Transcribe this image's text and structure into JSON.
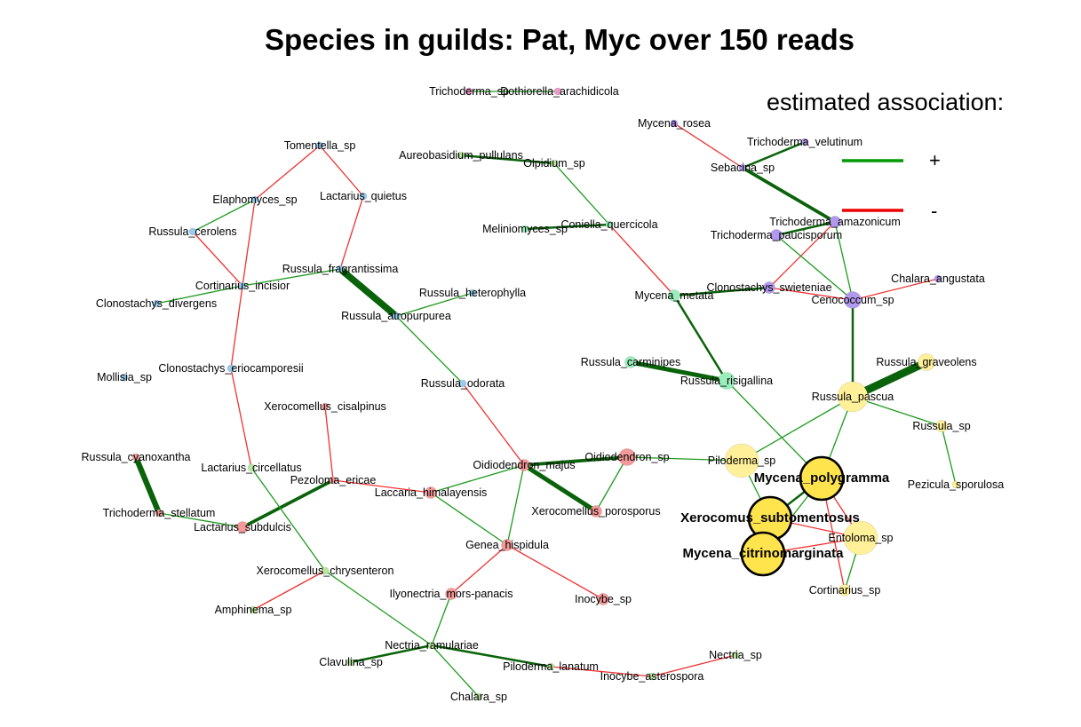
{
  "title": "Species in guilds: Pat, Myc over 150 reads",
  "legend": {
    "title": "estimated association:",
    "items": [
      {
        "symbol": "+",
        "color": "#009900"
      },
      {
        "symbol": "-",
        "color": "#ee0000"
      }
    ]
  },
  "colors": {
    "positive": "#1f9a1f",
    "positive_strong": "#0a630a",
    "negative": "#ee3333",
    "groups": {
      "blue": "#99ccee",
      "purple": "#b299ee",
      "teal": "#99eebb",
      "yellow": "#fff099",
      "highlight": "#ffe44d",
      "red": "#f59999",
      "green": "#b8e6a0",
      "pink": "#ee99cc"
    }
  },
  "nodes": [
    {
      "id": "Trichoderma_sp",
      "label": "Trichoderma_sp",
      "group": "pink",
      "size": 1
    },
    {
      "id": "Dothiorella_arachidicola",
      "label": "Dothiorella_arachidicola",
      "group": "pink",
      "size": 1
    },
    {
      "id": "Tomentella_sp",
      "label": "Tomentella_sp",
      "group": "blue",
      "size": 1
    },
    {
      "id": "Elaphomyces_sp",
      "label": "Elaphomyces_sp",
      "group": "blue",
      "size": 1
    },
    {
      "id": "Lactarius_quietus",
      "label": "Lactarius_quietus",
      "group": "blue",
      "size": 1
    },
    {
      "id": "Russula_cerolens",
      "label": "Russula_cerolens",
      "group": "blue",
      "size": 1
    },
    {
      "id": "Russula_fragrantissima",
      "label": "Russula_fragrantissima",
      "group": "blue",
      "size": 1
    },
    {
      "id": "Cortinarius_incisior",
      "label": "Cortinarius_incisior",
      "group": "blue",
      "size": 1
    },
    {
      "id": "Clonostachys_divergens",
      "label": "Clonostachys_divergens",
      "group": "blue",
      "size": 1
    },
    {
      "id": "Russula_heterophylla",
      "label": "Russula_heterophylla",
      "group": "blue",
      "size": 1
    },
    {
      "id": "Russula_atropurpurea",
      "label": "Russula_atropurpurea",
      "group": "blue",
      "size": 1
    },
    {
      "id": "Mollisia_sp",
      "label": "Mollisia_sp",
      "group": "blue",
      "size": 1
    },
    {
      "id": "Clonostachys_eriocamporesii",
      "label": "Clonostachys_eriocamporesii",
      "group": "blue",
      "size": 1
    },
    {
      "id": "Russula_odorata",
      "label": "Russula_odorata",
      "group": "blue",
      "size": 1
    },
    {
      "id": "Aureobasidium_pullulans",
      "label": "Aureobasidium_pullulans",
      "group": "green",
      "size": 1
    },
    {
      "id": "Olpidium_sp",
      "label": "Olpidium_sp",
      "group": "green",
      "size": 1
    },
    {
      "id": "Meliniomyces_sp",
      "label": "Meliniomyces_sp",
      "group": "teal",
      "size": 1
    },
    {
      "id": "Coniella_quercicola",
      "label": "Coniella_quercicola",
      "group": "teal",
      "size": 1
    },
    {
      "id": "Mycena_rosea",
      "label": "Mycena_rosea",
      "group": "purple",
      "size": 1
    },
    {
      "id": "Trichoderma_velutinum",
      "label": "Trichoderma_velutinum",
      "group": "purple",
      "size": 1
    },
    {
      "id": "Sebacina_sp",
      "label": "Sebacina_sp",
      "group": "purple",
      "size": 1
    },
    {
      "id": "Trichoderma_amazonicum",
      "label": "Trichoderma_amazonicum",
      "group": "purple",
      "size": 2
    },
    {
      "id": "Trichoderma_paucisporum",
      "label": "Trichoderma_paucisporum",
      "group": "purple",
      "size": 2
    },
    {
      "id": "Chalara_angustata",
      "label": "Chalara_angustata",
      "group": "purple",
      "size": 1
    },
    {
      "id": "Clonostachys_swieteniae",
      "label": "Clonostachys_swieteniae",
      "group": "purple",
      "size": 2
    },
    {
      "id": "Cenococcum_sp",
      "label": "Cenococcum_sp",
      "group": "purple",
      "size": 3
    },
    {
      "id": "Mycena_metata",
      "label": "Mycena_metata",
      "group": "teal",
      "size": 2
    },
    {
      "id": "Russula_carminipes",
      "label": "Russula_carminipes",
      "group": "teal",
      "size": 2
    },
    {
      "id": "Russula_risigallina",
      "label": "Russula_risigallina",
      "group": "teal",
      "size": 3
    },
    {
      "id": "Russula_graveolens",
      "label": "Russula_graveolens",
      "group": "yellow",
      "size": 3
    },
    {
      "id": "Russula_pascua",
      "label": "Russula_pascua",
      "group": "yellow",
      "size": 5
    },
    {
      "id": "Russula_sp",
      "label": "Russula_sp",
      "group": "yellow",
      "size": 2
    },
    {
      "id": "Pezicula_sporulosa",
      "label": "Pezicula_sporulosa",
      "group": "yellow",
      "size": 1
    },
    {
      "id": "Piloderma_sp",
      "label": "Piloderma_sp",
      "group": "yellow",
      "size": 6
    },
    {
      "id": "Mycena_polygramma",
      "label": "Mycena_polygramma",
      "group": "highlight",
      "size": 7,
      "bold": true
    },
    {
      "id": "Xerocomus_subtomentosus",
      "label": "Xerocomus_subtomentosus",
      "group": "highlight",
      "size": 7,
      "bold": true
    },
    {
      "id": "Mycena_citrinomarginata",
      "label": "Mycena_citrinomarginata",
      "group": "highlight",
      "size": 7,
      "bold": true
    },
    {
      "id": "Entoloma_sp",
      "label": "Entoloma_sp",
      "group": "yellow",
      "size": 6
    },
    {
      "id": "Cortinarius_sp",
      "label": "Cortinarius_sp",
      "group": "yellow",
      "size": 2
    },
    {
      "id": "Xerocomellus_cisalpinus",
      "label": "Xerocomellus_cisalpinus",
      "group": "red",
      "size": 1
    },
    {
      "id": "Oidiodendron_majus",
      "label": "Oidiodendron_majus",
      "group": "red",
      "size": 2
    },
    {
      "id": "Oidiodendron_sp",
      "label": "Oidiodendron_sp",
      "group": "red",
      "size": 3
    },
    {
      "id": "Xerocomellus_porosporus",
      "label": "Xerocomellus_porosporus",
      "group": "red",
      "size": 2
    },
    {
      "id": "Russula_cyanoxantha",
      "label": "Russula_cyanoxantha",
      "group": "red",
      "size": 1
    },
    {
      "id": "Lactarius_circellatus",
      "label": "Lactarius_circellatus",
      "group": "green",
      "size": 1
    },
    {
      "id": "Pezoloma_ericae",
      "label": "Pezoloma_ericae",
      "group": "red",
      "size": 1
    },
    {
      "id": "Laccaria_himalayensis",
      "label": "Laccaria_himalayensis",
      "group": "red",
      "size": 2
    },
    {
      "id": "Trichoderma_stellatum",
      "label": "Trichoderma_stellatum",
      "group": "red",
      "size": 1
    },
    {
      "id": "Lactarius_subdulcis",
      "label": "Lactarius_subdulcis",
      "group": "red",
      "size": 2
    },
    {
      "id": "Genea_hispidula",
      "label": "Genea_hispidula",
      "group": "red",
      "size": 2
    },
    {
      "id": "Xerocomellus_chrysenteron",
      "label": "Xerocomellus_chrysenteron",
      "group": "green",
      "size": 1
    },
    {
      "id": "Ilyonectria_mors-panacis",
      "label": "Ilyonectria_mors-panacis",
      "group": "red",
      "size": 2
    },
    {
      "id": "Inocybe_sp",
      "label": "Inocybe_sp",
      "group": "red",
      "size": 2
    },
    {
      "id": "Amphinema_sp",
      "label": "Amphinema_sp",
      "group": "green",
      "size": 1
    },
    {
      "id": "Nectria_ramulariae",
      "label": "Nectria_ramulariae",
      "group": "green",
      "size": 1
    },
    {
      "id": "Clavulina_sp",
      "label": "Clavulina_sp",
      "group": "green",
      "size": 1
    },
    {
      "id": "Piloderma_lanatum",
      "label": "Piloderma_lanatum",
      "group": "green",
      "size": 1
    },
    {
      "id": "Nectria_sp",
      "label": "Nectria_sp",
      "group": "green",
      "size": 1
    },
    {
      "id": "Inocybe_asterospora",
      "label": "Inocybe_asterospora",
      "group": "green",
      "size": 1
    },
    {
      "id": "Chalara_sp",
      "label": "Chalara_sp",
      "group": "green",
      "size": 1
    }
  ],
  "edges": [
    {
      "source": "Trichoderma_sp",
      "target": "Dothiorella_arachidicola",
      "sign": "+",
      "weight": 1
    },
    {
      "source": "Tomentella_sp",
      "target": "Elaphomyces_sp",
      "sign": "-",
      "weight": 1
    },
    {
      "source": "Tomentella_sp",
      "target": "Lactarius_quietus",
      "sign": "-",
      "weight": 1
    },
    {
      "source": "Elaphomyces_sp",
      "target": "Russula_cerolens",
      "sign": "+",
      "weight": 1
    },
    {
      "source": "Elaphomyces_sp",
      "target": "Cortinarius_incisior",
      "sign": "-",
      "weight": 1
    },
    {
      "source": "Russula_cerolens",
      "target": "Cortinarius_incisior",
      "sign": "-",
      "weight": 1
    },
    {
      "source": "Lactarius_quietus",
      "target": "Russula_fragrantissima",
      "sign": "-",
      "weight": 1
    },
    {
      "source": "Cortinarius_incisior",
      "target": "Russula_fragrantissima",
      "sign": "+",
      "weight": 1
    },
    {
      "source": "Cortinarius_incisior",
      "target": "Clonostachys_divergens",
      "sign": "+",
      "weight": 1
    },
    {
      "source": "Cortinarius_incisior",
      "target": "Clonostachys_eriocamporesii",
      "sign": "-",
      "weight": 1
    },
    {
      "source": "Russula_fragrantissima",
      "target": "Russula_atropurpurea",
      "sign": "+",
      "weight": 6
    },
    {
      "source": "Russula_atropurpurea",
      "target": "Russula_heterophylla",
      "sign": "+",
      "weight": 1
    },
    {
      "source": "Russula_atropurpurea",
      "target": "Russula_odorata",
      "sign": "+",
      "weight": 1
    },
    {
      "source": "Clonostachys_eriocamporesii",
      "target": "Lactarius_circellatus",
      "sign": "-",
      "weight": 1
    },
    {
      "source": "Russula_odorata",
      "target": "Oidiodendron_majus",
      "sign": "-",
      "weight": 1
    },
    {
      "source": "Aureobasidium_pullulans",
      "target": "Olpidium_sp",
      "sign": "+",
      "weight": 2
    },
    {
      "source": "Olpidium_sp",
      "target": "Coniella_quercicola",
      "sign": "+",
      "weight": 1
    },
    {
      "source": "Meliniomyces_sp",
      "target": "Coniella_quercicola",
      "sign": "+",
      "weight": 2
    },
    {
      "source": "Coniella_quercicola",
      "target": "Mycena_metata",
      "sign": "-",
      "weight": 1
    },
    {
      "source": "Mycena_rosea",
      "target": "Sebacina_sp",
      "sign": "-",
      "weight": 1
    },
    {
      "source": "Trichoderma_velutinum",
      "target": "Sebacina_sp",
      "sign": "+",
      "weight": 2
    },
    {
      "source": "Sebacina_sp",
      "target": "Trichoderma_amazonicum",
      "sign": "+",
      "weight": 3
    },
    {
      "source": "Trichoderma_amazonicum",
      "target": "Trichoderma_paucisporum",
      "sign": "+",
      "weight": 2
    },
    {
      "source": "Trichoderma_amazonicum",
      "target": "Clonostachys_swieteniae",
      "sign": "-",
      "weight": 1
    },
    {
      "source": "Trichoderma_amazonicum",
      "target": "Cenococcum_sp",
      "sign": "+",
      "weight": 1
    },
    {
      "source": "Trichoderma_paucisporum",
      "target": "Cenococcum_sp",
      "sign": "+",
      "weight": 1
    },
    {
      "source": "Clonostachys_swieteniae",
      "target": "Cenococcum_sp",
      "sign": "-",
      "weight": 1
    },
    {
      "source": "Mycena_metata",
      "target": "Clonostachys_swieteniae",
      "sign": "+",
      "weight": 2
    },
    {
      "source": "Chalara_angustata",
      "target": "Cenococcum_sp",
      "sign": "-",
      "weight": 1
    },
    {
      "source": "Cenococcum_sp",
      "target": "Russula_pascua",
      "sign": "+",
      "weight": 2
    },
    {
      "source": "Mycena_metata",
      "target": "Russula_risigallina",
      "sign": "+",
      "weight": 2
    },
    {
      "source": "Russula_carminipes",
      "target": "Russula_risigallina",
      "sign": "+",
      "weight": 4
    },
    {
      "source": "Russula_risigallina",
      "target": "Mycena_polygramma",
      "sign": "+",
      "weight": 1
    },
    {
      "source": "Russula_graveolens",
      "target": "Russula_pascua",
      "sign": "+",
      "weight": 7
    },
    {
      "source": "Russula_pascua",
      "target": "Russula_sp",
      "sign": "+",
      "weight": 1
    },
    {
      "source": "Russula_pascua",
      "target": "Piloderma_sp",
      "sign": "+",
      "weight": 1
    },
    {
      "source": "Russula_pascua",
      "target": "Mycena_polygramma",
      "sign": "+",
      "weight": 1
    },
    {
      "source": "Russula_sp",
      "target": "Pezicula_sporulosa",
      "sign": "+",
      "weight": 1
    },
    {
      "source": "Piloderma_sp",
      "target": "Xerocomus_subtomentosus",
      "sign": "+",
      "weight": 1
    },
    {
      "source": "Piloderma_sp",
      "target": "Oidiodendron_sp",
      "sign": "+",
      "weight": 1
    },
    {
      "source": "Mycena_polygramma",
      "target": "Xerocomus_subtomentosus",
      "sign": "+",
      "weight": 2
    },
    {
      "source": "Mycena_polygramma",
      "target": "Entoloma_sp",
      "sign": "-",
      "weight": 1
    },
    {
      "source": "Mycena_polygramma",
      "target": "Cortinarius_sp",
      "sign": "-",
      "weight": 1
    },
    {
      "source": "Xerocomus_subtomentosus",
      "target": "Mycena_citrinomarginata",
      "sign": "+",
      "weight": 3
    },
    {
      "source": "Xerocomus_subtomentosus",
      "target": "Entoloma_sp",
      "sign": "-",
      "weight": 1
    },
    {
      "source": "Mycena_citrinomarginata",
      "target": "Entoloma_sp",
      "sign": "-",
      "weight": 1
    },
    {
      "source": "Mycena_citrinomarginata",
      "target": "Mycena_polygramma",
      "sign": "+",
      "weight": 1
    },
    {
      "source": "Entoloma_sp",
      "target": "Cortinarius_sp",
      "sign": "+",
      "weight": 1
    },
    {
      "source": "Xerocomellus_cisalpinus",
      "target": "Pezoloma_ericae",
      "sign": "-",
      "weight": 1
    },
    {
      "source": "Oidiodendron_majus",
      "target": "Oidiodendron_sp",
      "sign": "+",
      "weight": 3
    },
    {
      "source": "Oidiodendron_majus",
      "target": "Xerocomellus_porosporus",
      "sign": "+",
      "weight": 4
    },
    {
      "source": "Oidiodendron_sp",
      "target": "Xerocomellus_porosporus",
      "sign": "+",
      "weight": 1
    },
    {
      "source": "Oidiodendron_majus",
      "target": "Laccaria_himalayensis",
      "sign": "+",
      "weight": 1
    },
    {
      "source": "Oidiodendron_majus",
      "target": "Genea_hispidula",
      "sign": "+",
      "weight": 1
    },
    {
      "source": "Pezoloma_ericae",
      "target": "Laccaria_himalayensis",
      "sign": "-",
      "weight": 1
    },
    {
      "source": "Pezoloma_ericae",
      "target": "Lactarius_subdulcis",
      "sign": "+",
      "weight": 3
    },
    {
      "source": "Laccaria_himalayensis",
      "target": "Genea_hispidula",
      "sign": "+",
      "weight": 1
    },
    {
      "source": "Russula_cyanoxantha",
      "target": "Trichoderma_stellatum",
      "sign": "+",
      "weight": 5
    },
    {
      "source": "Trichoderma_stellatum",
      "target": "Lactarius_subdulcis",
      "sign": "+",
      "weight": 1
    },
    {
      "source": "Lactarius_circellatus",
      "target": "Xerocomellus_chrysenteron",
      "sign": "+",
      "weight": 1
    },
    {
      "source": "Xerocomellus_chrysenteron",
      "target": "Amphinema_sp",
      "sign": "-",
      "weight": 1
    },
    {
      "source": "Xerocomellus_chrysenteron",
      "target": "Nectria_ramulariae",
      "sign": "+",
      "weight": 1
    },
    {
      "source": "Genea_hispidula",
      "target": "Ilyonectria_mors-panacis",
      "sign": "-",
      "weight": 1
    },
    {
      "source": "Genea_hispidula",
      "target": "Inocybe_sp",
      "sign": "-",
      "weight": 1
    },
    {
      "source": "Ilyonectria_mors-panacis",
      "target": "Nectria_ramulariae",
      "sign": "+",
      "weight": 1
    },
    {
      "source": "Nectria_ramulariae",
      "target": "Clavulina_sp",
      "sign": "+",
      "weight": 2
    },
    {
      "source": "Nectria_ramulariae",
      "target": "Piloderma_lanatum",
      "sign": "+",
      "weight": 2
    },
    {
      "source": "Nectria_ramulariae",
      "target": "Chalara_sp",
      "sign": "+",
      "weight": 1
    },
    {
      "source": "Piloderma_lanatum",
      "target": "Inocybe_asterospora",
      "sign": "-",
      "weight": 1
    },
    {
      "source": "Inocybe_asterospora",
      "target": "Nectria_sp",
      "sign": "-",
      "weight": 1
    }
  ]
}
